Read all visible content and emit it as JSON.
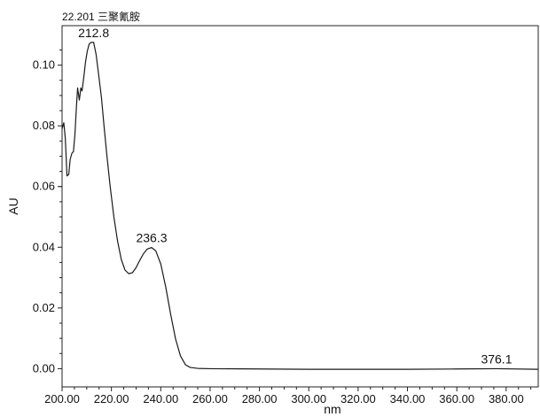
{
  "chart_data": {
    "type": "line",
    "title": "22.201 三聚氰胺",
    "xlabel": "nm",
    "ylabel": "AU",
    "xlim": [
      200,
      393
    ],
    "ylim": [
      -0.006,
      0.113
    ],
    "grid": false,
    "legend": "none",
    "x_ticks": [
      200,
      220,
      240,
      260,
      280,
      300,
      320,
      340,
      360,
      380
    ],
    "x_tick_labels": [
      "200.00",
      "220.00",
      "240.00",
      "260.00",
      "280.00",
      "300.00",
      "320.00",
      "340.00",
      "360.00",
      "380.00"
    ],
    "y_ticks": [
      0.0,
      0.02,
      0.04,
      0.06,
      0.08,
      0.1
    ],
    "y_tick_labels": [
      "0.00",
      "0.02",
      "0.04",
      "0.06",
      "0.08",
      "0.10"
    ],
    "series": [
      {
        "color": "#1a1a1a",
        "points": [
          [
            200.0,
            0.079
          ],
          [
            200.7,
            0.081
          ],
          [
            201.3,
            0.076
          ],
          [
            202.0,
            0.0635
          ],
          [
            202.7,
            0.064
          ],
          [
            203.3,
            0.069
          ],
          [
            204.0,
            0.071
          ],
          [
            204.6,
            0.0715
          ],
          [
            205.2,
            0.077
          ],
          [
            205.8,
            0.086
          ],
          [
            206.3,
            0.0925
          ],
          [
            207.0,
            0.0885
          ],
          [
            207.6,
            0.0925
          ],
          [
            208.1,
            0.0915
          ],
          [
            208.8,
            0.096
          ],
          [
            209.5,
            0.101
          ],
          [
            210.2,
            0.1045
          ],
          [
            211.0,
            0.107
          ],
          [
            211.8,
            0.1075
          ],
          [
            212.8,
            0.1075
          ],
          [
            213.8,
            0.1035
          ],
          [
            214.8,
            0.097
          ],
          [
            216.0,
            0.089
          ],
          [
            217.0,
            0.08
          ],
          [
            218.2,
            0.07
          ],
          [
            219.5,
            0.06
          ],
          [
            221.0,
            0.05
          ],
          [
            222.5,
            0.042
          ],
          [
            224.0,
            0.036
          ],
          [
            225.5,
            0.0325
          ],
          [
            227.0,
            0.0313
          ],
          [
            228.5,
            0.0316
          ],
          [
            230.0,
            0.0333
          ],
          [
            231.5,
            0.0357
          ],
          [
            233.0,
            0.0379
          ],
          [
            234.5,
            0.0394
          ],
          [
            236.3,
            0.0399
          ],
          [
            238.0,
            0.0388
          ],
          [
            240.0,
            0.0345
          ],
          [
            242.0,
            0.027
          ],
          [
            244.0,
            0.018
          ],
          [
            246.0,
            0.0098
          ],
          [
            248.0,
            0.0042
          ],
          [
            250.0,
            0.0013
          ],
          [
            252.0,
            0.0004
          ],
          [
            255.0,
            0.0001
          ],
          [
            260.0,
            0.0
          ],
          [
            280.0,
            -0.0001
          ],
          [
            300.0,
            -0.0002
          ],
          [
            320.0,
            -0.0002
          ],
          [
            340.0,
            -0.0002
          ],
          [
            360.0,
            -0.0001
          ],
          [
            376.1,
            0.0
          ],
          [
            393.0,
            -0.0002
          ]
        ]
      }
    ],
    "annotations": [
      {
        "text": "212.8",
        "x": 212.8,
        "y": 0.1075
      },
      {
        "text": "236.3",
        "x": 236.3,
        "y": 0.0399
      },
      {
        "text": "376.1",
        "x": 376.1,
        "y": 0.0
      }
    ]
  }
}
